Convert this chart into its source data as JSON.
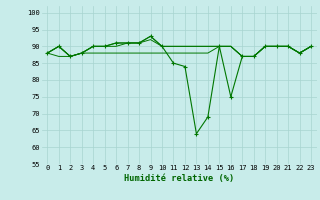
{
  "x": [
    0,
    1,
    2,
    3,
    4,
    5,
    6,
    7,
    8,
    9,
    10,
    11,
    12,
    13,
    14,
    15,
    16,
    17,
    18,
    19,
    20,
    21,
    22,
    23
  ],
  "line1": [
    88,
    90,
    87,
    88,
    90,
    90,
    91,
    91,
    91,
    93,
    90,
    85,
    84,
    64,
    69,
    90,
    75,
    87,
    87,
    90,
    90,
    90,
    88,
    90
  ],
  "line2": [
    88,
    90,
    87,
    88,
    90,
    90,
    91,
    91,
    91,
    93,
    90,
    90,
    90,
    90,
    90,
    90,
    90,
    87,
    87,
    90,
    90,
    90,
    88,
    90
  ],
  "line3": [
    88,
    87,
    87,
    88,
    88,
    88,
    88,
    88,
    88,
    88,
    88,
    88,
    88,
    88,
    88,
    90,
    90,
    87,
    87,
    90,
    90,
    90,
    88,
    90
  ],
  "line4": [
    88,
    90,
    87,
    88,
    90,
    90,
    90,
    91,
    91,
    92,
    90,
    90,
    90,
    90,
    90,
    90,
    90,
    87,
    87,
    90,
    90,
    90,
    88,
    90
  ],
  "line_color": "#007700",
  "bg_color": "#c8ecea",
  "grid_color": "#a8d4d0",
  "xlabel": "Humidité relative (%)",
  "ylim": [
    55,
    102
  ],
  "xlim": [
    -0.5,
    23.5
  ],
  "yticks": [
    55,
    60,
    65,
    70,
    75,
    80,
    85,
    90,
    95,
    100
  ],
  "xticks": [
    0,
    1,
    2,
    3,
    4,
    5,
    6,
    7,
    8,
    9,
    10,
    11,
    12,
    13,
    14,
    15,
    16,
    17,
    18,
    19,
    20,
    21,
    22,
    23
  ],
  "tick_fontsize": 5.0,
  "xlabel_fontsize": 6.2
}
